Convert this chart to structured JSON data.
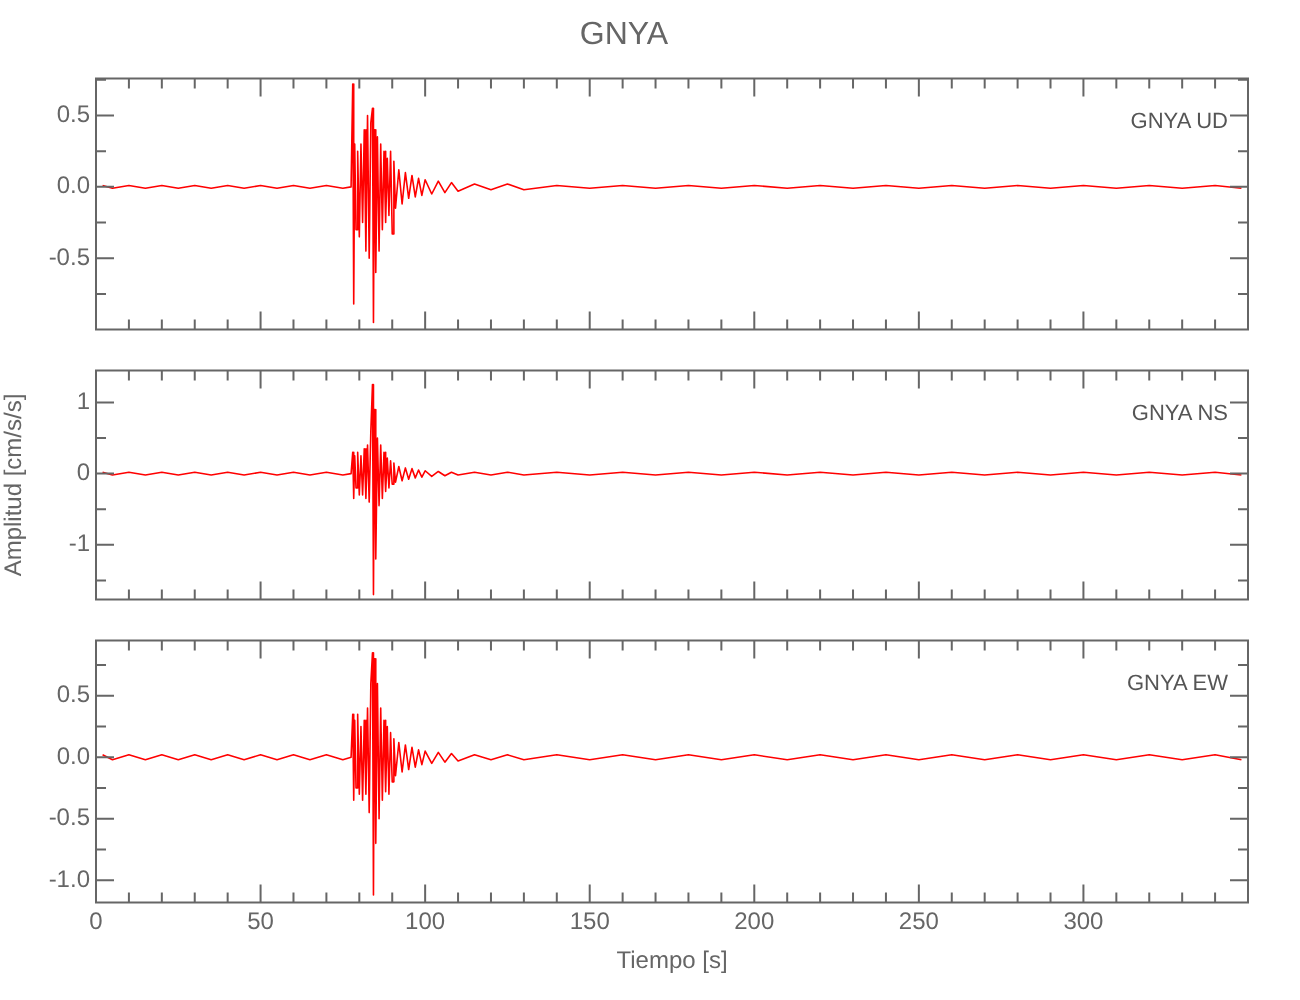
{
  "chart_data": [
    {
      "type": "line",
      "title": "GNYA",
      "annotations": [
        "GNYA UD"
      ],
      "tick_labels": "y",
      "xlim": [
        0,
        350
      ],
      "ylim": [
        -1.0,
        0.76
      ],
      "xticks": [
        0,
        {
          "value": 10,
          "label": null
        },
        {
          "value": 20,
          "label": null
        },
        {
          "value": 30,
          "label": null
        },
        {
          "value": 40,
          "label": null
        },
        50,
        {
          "value": 60,
          "label": null
        },
        {
          "value": 70,
          "label": null
        },
        {
          "value": 80,
          "label": null
        },
        {
          "value": 90,
          "label": null
        },
        100,
        {
          "value": 110,
          "label": null
        },
        {
          "value": 120,
          "label": null
        },
        {
          "value": 130,
          "label": null
        },
        {
          "value": 140,
          "label": null
        },
        150,
        {
          "value": 160,
          "label": null
        },
        {
          "value": 170,
          "label": null
        },
        {
          "value": 180,
          "label": null
        },
        {
          "value": 190,
          "label": null
        },
        200,
        {
          "value": 210,
          "label": null
        },
        {
          "value": 220,
          "label": null
        },
        {
          "value": 230,
          "label": null
        },
        {
          "value": 240,
          "label": null
        },
        250,
        {
          "value": 260,
          "label": null
        },
        {
          "value": 270,
          "label": null
        },
        {
          "value": 280,
          "label": null
        },
        {
          "value": 290,
          "label": null
        },
        300,
        {
          "value": 310,
          "label": null
        },
        {
          "value": 320,
          "label": null
        },
        {
          "value": 330,
          "label": null
        },
        {
          "value": 340,
          "label": null
        }
      ],
      "yticks": [
        {
          "value": -0.75,
          "label": null
        },
        -0.5,
        {
          "value": -0.25,
          "label": null
        },
        {
          "value": 0,
          "label": "0.0"
        },
        {
          "value": 0.25,
          "label": null
        },
        0.5,
        {
          "value": 0.75,
          "label": null
        }
      ],
      "x": [
        2,
        5,
        10,
        15,
        20,
        25,
        30,
        35,
        40,
        45,
        50,
        55,
        60,
        65,
        70,
        75,
        77.5,
        78,
        78.3,
        78.6,
        79,
        79.5,
        80,
        80.5,
        81,
        81.5,
        82,
        82.5,
        83,
        83.5,
        84,
        84.3,
        84.6,
        85,
        85.5,
        86,
        86.5,
        87,
        87.5,
        88,
        88.5,
        89,
        89.5,
        90,
        90.5,
        91,
        92,
        93,
        94,
        95,
        96,
        97,
        98,
        99,
        100,
        102,
        104,
        106,
        108,
        110,
        115,
        120,
        125,
        130,
        140,
        150,
        160,
        170,
        180,
        190,
        200,
        210,
        220,
        230,
        240,
        250,
        260,
        270,
        280,
        290,
        300,
        310,
        320,
        330,
        340,
        348
      ],
      "series": [
        {
          "color": "#ff0000",
          "values": [
            0.01,
            -0.01,
            0.01,
            -0.01,
            0.01,
            -0.01,
            0.01,
            -0.01,
            0.01,
            -0.01,
            0.01,
            -0.01,
            0.01,
            -0.01,
            0.01,
            -0.01,
            0,
            0.72,
            -0.82,
            0.3,
            -0.3,
            0.25,
            -0.35,
            0.3,
            -0.25,
            0.4,
            -0.45,
            0.5,
            -0.5,
            0.45,
            0.55,
            -0.95,
            0.4,
            -0.6,
            0.35,
            -0.45,
            0.3,
            -0.3,
            0.25,
            -0.25,
            0.2,
            -0.2,
            0.25,
            -0.33,
            0.18,
            -0.15,
            0.12,
            -0.12,
            0.1,
            -0.08,
            0.08,
            -0.07,
            0.06,
            -0.06,
            0.05,
            -0.05,
            0.04,
            -0.04,
            0.03,
            -0.03,
            0.02,
            -0.02,
            0.02,
            -0.02,
            0.01,
            -0.01,
            0.01,
            -0.01,
            0.01,
            -0.01,
            0.01,
            -0.01,
            0.01,
            -0.01,
            0.01,
            -0.01,
            0.01,
            -0.01,
            0.01,
            -0.01,
            0.01,
            -0.01,
            0.01,
            -0.01,
            0.01,
            -0.01
          ]
        }
      ]
    },
    {
      "type": "line",
      "ylabel": "Amplitud [cm/s/s]",
      "annotations": [
        "GNYA NS"
      ],
      "tick_labels": "y",
      "xlim": [
        0,
        350
      ],
      "ylim": [
        -1.77,
        1.45
      ],
      "xticks": [
        0,
        {
          "value": 10,
          "label": null
        },
        {
          "value": 20,
          "label": null
        },
        {
          "value": 30,
          "label": null
        },
        {
          "value": 40,
          "label": null
        },
        50,
        {
          "value": 60,
          "label": null
        },
        {
          "value": 70,
          "label": null
        },
        {
          "value": 80,
          "label": null
        },
        {
          "value": 90,
          "label": null
        },
        100,
        {
          "value": 110,
          "label": null
        },
        {
          "value": 120,
          "label": null
        },
        {
          "value": 130,
          "label": null
        },
        {
          "value": 140,
          "label": null
        },
        150,
        {
          "value": 160,
          "label": null
        },
        {
          "value": 170,
          "label": null
        },
        {
          "value": 180,
          "label": null
        },
        {
          "value": 190,
          "label": null
        },
        200,
        {
          "value": 210,
          "label": null
        },
        {
          "value": 220,
          "label": null
        },
        {
          "value": 230,
          "label": null
        },
        {
          "value": 240,
          "label": null
        },
        250,
        {
          "value": 260,
          "label": null
        },
        {
          "value": 270,
          "label": null
        },
        {
          "value": 280,
          "label": null
        },
        {
          "value": 290,
          "label": null
        },
        300,
        {
          "value": 310,
          "label": null
        },
        {
          "value": 320,
          "label": null
        },
        {
          "value": 330,
          "label": null
        },
        {
          "value": 340,
          "label": null
        }
      ],
      "yticks": [
        {
          "value": -1.5,
          "label": null
        },
        -1,
        {
          "value": -0.5,
          "label": null
        },
        0,
        {
          "value": 0.5,
          "label": null
        },
        1
      ],
      "x": [
        2,
        5,
        10,
        15,
        20,
        25,
        30,
        35,
        40,
        45,
        50,
        55,
        60,
        65,
        70,
        75,
        77.5,
        78,
        78.3,
        78.6,
        79,
        79.5,
        80,
        80.5,
        81,
        81.5,
        82,
        82.5,
        83,
        83.5,
        84,
        84.3,
        84.6,
        85,
        85.5,
        86,
        86.5,
        87,
        87.5,
        88,
        88.5,
        89,
        89.5,
        90,
        90.5,
        91,
        92,
        93,
        94,
        95,
        96,
        97,
        98,
        99,
        100,
        102,
        104,
        106,
        108,
        110,
        115,
        120,
        125,
        130,
        140,
        150,
        160,
        170,
        180,
        190,
        200,
        210,
        220,
        230,
        240,
        250,
        260,
        270,
        280,
        290,
        300,
        310,
        320,
        330,
        340,
        348
      ],
      "series": [
        {
          "color": "#ff0000",
          "values": [
            0.02,
            -0.02,
            0.02,
            -0.02,
            0.02,
            -0.02,
            0.02,
            -0.02,
            0.02,
            -0.02,
            0.02,
            -0.02,
            0.02,
            -0.02,
            0.02,
            -0.02,
            0,
            0.3,
            -0.35,
            0.25,
            -0.2,
            0.3,
            -0.3,
            0.25,
            -0.3,
            0.35,
            -0.35,
            0.4,
            -0.4,
            0.6,
            1.25,
            -1.7,
            0.9,
            -1.2,
            0.5,
            -0.45,
            0.4,
            -0.35,
            0.3,
            -0.25,
            0.22,
            -0.2,
            0.18,
            -0.15,
            0.15,
            -0.12,
            0.1,
            -0.1,
            0.08,
            -0.08,
            0.07,
            -0.06,
            0.05,
            -0.05,
            0.04,
            -0.04,
            0.03,
            -0.03,
            0.02,
            -0.02,
            0.02,
            -0.02,
            0.02,
            -0.02,
            0.02,
            -0.02,
            0.02,
            -0.02,
            0.02,
            -0.02,
            0.02,
            -0.02,
            0.02,
            -0.02,
            0.02,
            -0.02,
            0.02,
            -0.02,
            0.02,
            -0.02,
            0.02,
            -0.02,
            0.02,
            -0.02,
            0.02,
            -0.02
          ]
        }
      ]
    },
    {
      "type": "line",
      "xlabel": "Tiempo [s]",
      "annotations": [
        "GNYA EW"
      ],
      "xlim": [
        0,
        350
      ],
      "ylim": [
        -1.18,
        0.95
      ],
      "xticks": [
        0,
        {
          "value": 10,
          "label": null
        },
        {
          "value": 20,
          "label": null
        },
        {
          "value": 30,
          "label": null
        },
        {
          "value": 40,
          "label": null
        },
        50,
        {
          "value": 60,
          "label": null
        },
        {
          "value": 70,
          "label": null
        },
        {
          "value": 80,
          "label": null
        },
        {
          "value": 90,
          "label": null
        },
        100,
        {
          "value": 110,
          "label": null
        },
        {
          "value": 120,
          "label": null
        },
        {
          "value": 130,
          "label": null
        },
        {
          "value": 140,
          "label": null
        },
        150,
        {
          "value": 160,
          "label": null
        },
        {
          "value": 170,
          "label": null
        },
        {
          "value": 180,
          "label": null
        },
        {
          "value": 190,
          "label": null
        },
        200,
        {
          "value": 210,
          "label": null
        },
        {
          "value": 220,
          "label": null
        },
        {
          "value": 230,
          "label": null
        },
        {
          "value": 240,
          "label": null
        },
        250,
        {
          "value": 260,
          "label": null
        },
        {
          "value": 270,
          "label": null
        },
        {
          "value": 280,
          "label": null
        },
        {
          "value": 290,
          "label": null
        },
        300,
        {
          "value": 310,
          "label": null
        },
        {
          "value": 320,
          "label": null
        },
        {
          "value": 330,
          "label": null
        },
        {
          "value": 340,
          "label": null
        }
      ],
      "yticks": [
        {
          "value": -1.0,
          "label": "-1.0"
        },
        {
          "value": -0.75,
          "label": null
        },
        -0.5,
        {
          "value": -0.25,
          "label": null
        },
        {
          "value": 0,
          "label": "0.0"
        },
        {
          "value": 0.25,
          "label": null
        },
        0.5,
        {
          "value": 0.75,
          "label": null
        }
      ],
      "x": [
        2,
        5,
        10,
        15,
        20,
        25,
        30,
        35,
        40,
        45,
        50,
        55,
        60,
        65,
        70,
        75,
        77.5,
        78,
        78.3,
        78.6,
        79,
        79.5,
        80,
        80.5,
        81,
        81.5,
        82,
        82.5,
        83,
        83.5,
        84,
        84.3,
        84.6,
        85,
        85.5,
        86,
        86.5,
        87,
        87.5,
        88,
        88.5,
        89,
        89.5,
        90,
        90.5,
        91,
        92,
        93,
        94,
        95,
        96,
        97,
        98,
        99,
        100,
        102,
        104,
        106,
        108,
        110,
        115,
        120,
        125,
        130,
        140,
        150,
        160,
        170,
        180,
        190,
        200,
        210,
        220,
        230,
        240,
        250,
        260,
        270,
        280,
        290,
        300,
        310,
        320,
        330,
        340,
        348
      ],
      "series": [
        {
          "color": "#ff0000",
          "values": [
            0.02,
            -0.02,
            0.02,
            -0.02,
            0.02,
            -0.02,
            0.02,
            -0.02,
            0.02,
            -0.02,
            0.02,
            -0.02,
            0.02,
            -0.02,
            0.02,
            -0.02,
            0,
            0.35,
            -0.35,
            0.3,
            -0.25,
            0.35,
            -0.3,
            0.25,
            -0.35,
            0.3,
            -0.3,
            0.4,
            -0.45,
            0.6,
            0.85,
            -1.12,
            0.8,
            -0.7,
            0.6,
            -0.5,
            0.4,
            -0.35,
            0.3,
            -0.28,
            0.25,
            -0.3,
            0.2,
            -0.2,
            0.15,
            -0.15,
            0.12,
            -0.12,
            0.1,
            -0.1,
            0.08,
            -0.08,
            0.06,
            -0.06,
            0.05,
            -0.05,
            0.04,
            -0.04,
            0.03,
            -0.03,
            0.02,
            -0.02,
            0.02,
            -0.02,
            0.02,
            -0.02,
            0.02,
            -0.02,
            0.02,
            -0.02,
            0.02,
            -0.02,
            0.02,
            -0.02,
            0.02,
            -0.02,
            0.02,
            -0.02,
            0.02,
            -0.02,
            0.02,
            -0.02,
            0.02,
            -0.02,
            0.02,
            -0.02
          ]
        }
      ]
    }
  ]
}
